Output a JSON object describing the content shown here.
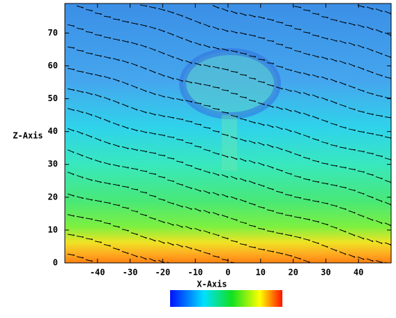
{
  "chart_data": {
    "type": "vector_field",
    "xlabel": "X-Axis",
    "ylabel": "Z-Axis",
    "xlim": [
      -50,
      50
    ],
    "ylim": [
      0,
      79
    ],
    "xticks": [
      -40,
      -30,
      -20,
      -10,
      0,
      10,
      20,
      30,
      40
    ],
    "yticks": [
      0,
      10,
      20,
      30,
      40,
      50,
      60,
      70
    ],
    "grid": false
  }
}
